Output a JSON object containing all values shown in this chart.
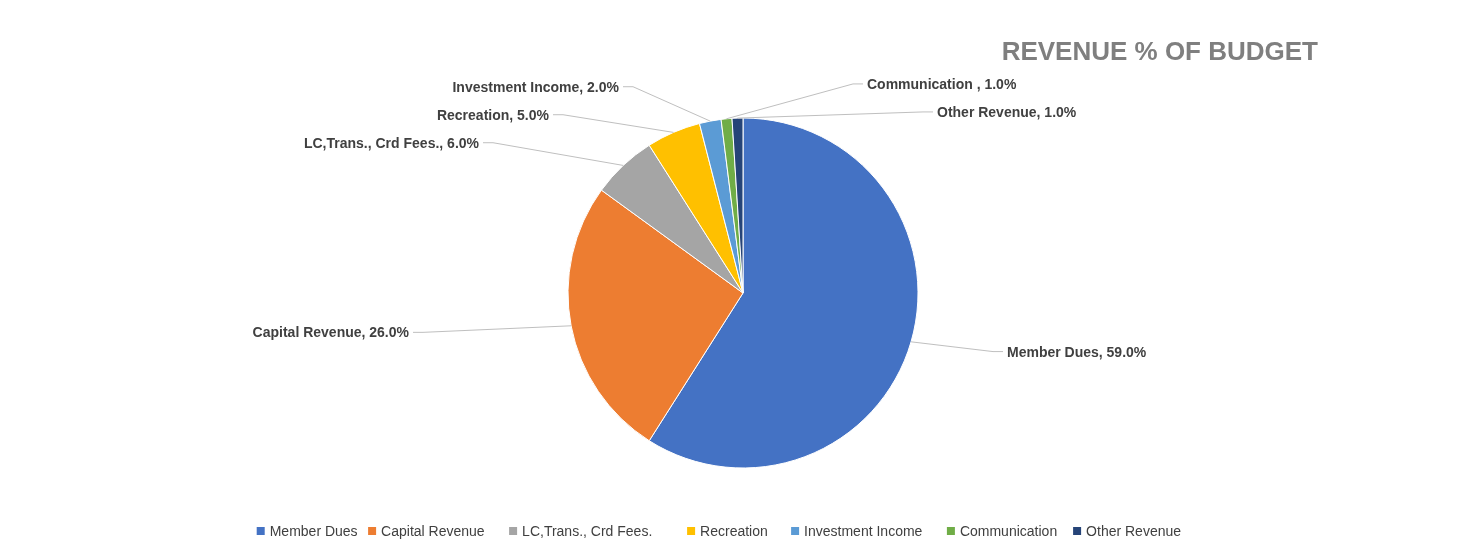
{
  "chart_data": {
    "type": "pie",
    "title": "REVENUE % OF BUDGET",
    "categories": [
      "Member Dues",
      "Capital Revenue",
      "LC,Trans., Crd Fees.",
      "Recreation",
      "Investment Income",
      "Communication",
      "Other Revenue"
    ],
    "values": [
      59,
      26,
      6,
      5,
      2,
      1,
      1
    ],
    "colors": [
      "#4472c4",
      "#ed7d31",
      "#a5a5a5",
      "#ffc000",
      "#5b9bd5",
      "#70ad47",
      "#264478"
    ],
    "value_labels": [
      "Member Dues, 59.0%",
      "Capital Revenue, 26.0%",
      "LC,Trans., Crd Fees., 6.0%",
      "Recreation, 5.0%",
      "Investment Income, 2.0%",
      "Communication , 1.0%",
      "Other Revenue, 1.0%"
    ],
    "legend": "bottom"
  }
}
